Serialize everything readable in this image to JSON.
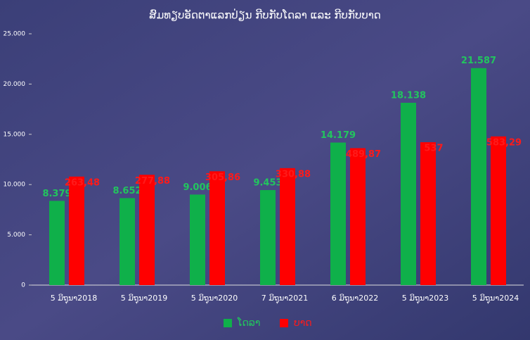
{
  "chart_data": {
    "type": "bar",
    "title": "ສົມທຽບອັດຕາແລກປ່ຽນ ກີບກັບໂດລາ ແລະ ກີບກັບບາດ",
    "categories": [
      "5 ມິຖຸນາ2018",
      "5 ມິຖຸນາ2019",
      "5 ມິຖຸນາ2020",
      "7 ມິຖຸນາ2021",
      "6 ມິຖຸນາ2022",
      "5 ມິຖຸນາ2023",
      "5 ມິຖຸນາ2024"
    ],
    "series": [
      {
        "name": "ໂດລາ",
        "color": "#0fb04a",
        "label_color": "#22c55e",
        "values": [
          8379,
          8652,
          9006,
          9453,
          14179,
          18138,
          21587
        ],
        "value_labels": [
          "8.379",
          "8.652",
          "9.006",
          "9.453",
          "14.179",
          "18.138",
          "21.587"
        ]
      },
      {
        "name": "ບາດ",
        "color": "#ff0000",
        "label_color": "#ff1a1a",
        "axis": "y2",
        "values": [
          263.48,
          277.88,
          305.86,
          330.88,
          489.87,
          537,
          583.29
        ],
        "value_labels": [
          "263,48",
          "277,88",
          "305,86",
          "330,88",
          "489,87",
          "537",
          "583,29"
        ]
      }
    ],
    "ylim": [
      0,
      25000
    ],
    "yticks": [
      0,
      {
        "value": 5000,
        "label": "5.000"
      },
      {
        "value": 10000,
        "label": "10.000"
      },
      {
        "value": 15000,
        "label": "15.000"
      },
      {
        "value": 20000,
        "label": "20.000"
      },
      {
        "value": 25000,
        "label": "25.000"
      }
    ],
    "y2lim": [
      -600,
      1400
    ],
    "grid": false,
    "legend": "bottom"
  }
}
